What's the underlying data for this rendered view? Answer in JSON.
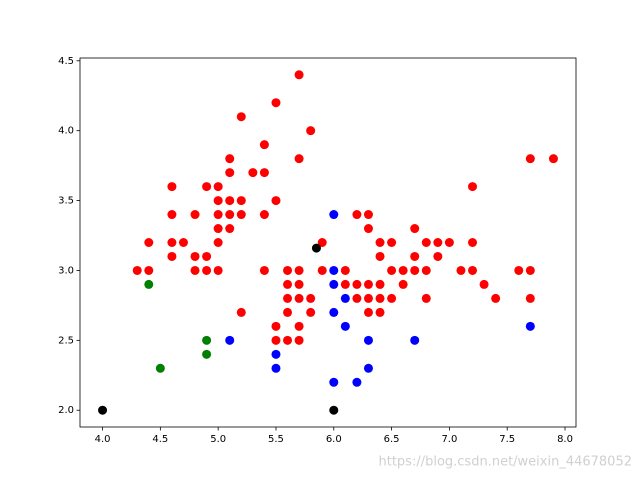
{
  "chart_data": {
    "type": "scatter",
    "watermark": "https://blog.csdn.net/weixin_44678052",
    "xlim": [
      3.805,
      8.095
    ],
    "ylim": [
      1.88,
      4.52
    ],
    "xticks": [
      {
        "value": 4.0,
        "label": "4.0"
      },
      {
        "value": 4.5,
        "label": "4.5"
      },
      {
        "value": 5.0,
        "label": "5.0"
      },
      {
        "value": 5.5,
        "label": "5.5"
      },
      {
        "value": 6.0,
        "label": "6.0"
      },
      {
        "value": 6.5,
        "label": "6.5"
      },
      {
        "value": 7.0,
        "label": "7.0"
      },
      {
        "value": 7.5,
        "label": "7.5"
      },
      {
        "value": 8.0,
        "label": "8.0"
      }
    ],
    "yticks": [
      {
        "value": 2.0,
        "label": "2.0"
      },
      {
        "value": 2.5,
        "label": "2.5"
      },
      {
        "value": 3.0,
        "label": "3.0"
      },
      {
        "value": 3.5,
        "label": "3.5"
      },
      {
        "value": 4.0,
        "label": "4.0"
      },
      {
        "value": 4.5,
        "label": "4.5"
      }
    ],
    "series": [
      {
        "color": "#ff0000",
        "x": [
          4.3,
          4.4,
          4.4,
          4.6,
          4.6,
          4.6,
          4.6,
          4.7,
          4.8,
          4.8,
          4.8,
          4.9,
          4.9,
          4.9,
          5.0,
          5.0,
          5.0,
          5.0,
          5.0,
          5.0,
          5.1,
          5.1,
          5.1,
          5.1,
          5.1,
          5.2,
          5.2,
          5.2,
          5.2,
          5.3,
          5.4,
          5.4,
          5.4,
          5.4,
          5.5,
          5.5,
          5.7,
          5.7,
          5.8,
          5.5,
          5.5,
          5.6,
          5.6,
          5.6,
          5.6,
          5.6,
          5.7,
          5.7,
          5.7,
          5.7,
          5.7,
          5.8,
          5.8,
          5.9,
          5.9,
          6.1,
          6.1,
          6.2,
          6.2,
          6.2,
          6.3,
          6.3,
          6.3,
          6.3,
          6.3,
          6.4,
          6.4,
          6.4,
          6.4,
          6.4,
          6.5,
          6.5,
          6.5,
          6.6,
          6.6,
          6.7,
          6.7,
          6.7,
          6.8,
          6.8,
          6.8,
          6.9,
          6.9,
          7.0,
          7.1,
          7.2,
          7.2,
          7.2,
          7.3,
          7.4,
          7.6,
          7.7,
          7.7,
          7.7,
          7.9
        ],
        "values": [
          3.0,
          3.0,
          3.2,
          3.1,
          3.2,
          3.4,
          3.6,
          3.2,
          3.0,
          3.1,
          3.4,
          3.0,
          3.1,
          3.6,
          3.0,
          3.2,
          3.3,
          3.4,
          3.5,
          3.6,
          3.3,
          3.4,
          3.5,
          3.7,
          3.8,
          3.4,
          3.5,
          4.1,
          2.7,
          3.7,
          3.4,
          3.7,
          3.9,
          3.0,
          3.5,
          4.2,
          4.4,
          3.8,
          4.0,
          2.5,
          2.6,
          2.5,
          2.7,
          2.8,
          2.9,
          3.0,
          2.5,
          2.6,
          2.8,
          2.9,
          3.0,
          2.7,
          2.8,
          3.0,
          3.2,
          2.9,
          3.0,
          2.8,
          2.9,
          3.4,
          2.7,
          2.8,
          2.9,
          3.3,
          3.4,
          2.7,
          2.8,
          2.9,
          3.1,
          3.2,
          2.8,
          3.0,
          3.2,
          2.9,
          3.0,
          3.0,
          3.1,
          3.3,
          2.8,
          3.0,
          3.2,
          3.1,
          3.2,
          3.2,
          3.0,
          3.0,
          3.2,
          3.6,
          2.9,
          2.8,
          3.0,
          2.8,
          3.0,
          3.8,
          3.8
        ]
      },
      {
        "color": "#0000ff",
        "x": [
          5.1,
          5.5,
          5.5,
          6.0,
          6.0,
          6.0,
          6.0,
          6.1,
          6.1,
          6.0,
          6.2,
          6.3,
          6.3,
          6.7,
          7.7
        ],
        "values": [
          2.5,
          2.4,
          2.3,
          3.4,
          3.0,
          2.9,
          2.7,
          2.8,
          2.6,
          2.2,
          2.2,
          2.5,
          2.3,
          2.5,
          2.6
        ]
      },
      {
        "color": "#008000",
        "x": [
          4.4,
          4.5,
          4.9,
          4.9
        ],
        "values": [
          2.9,
          2.3,
          2.5,
          2.4
        ]
      },
      {
        "color": "#000000",
        "x": [
          4.0,
          6.0,
          5.85
        ],
        "values": [
          2.0,
          2.0,
          3.16
        ]
      }
    ]
  }
}
